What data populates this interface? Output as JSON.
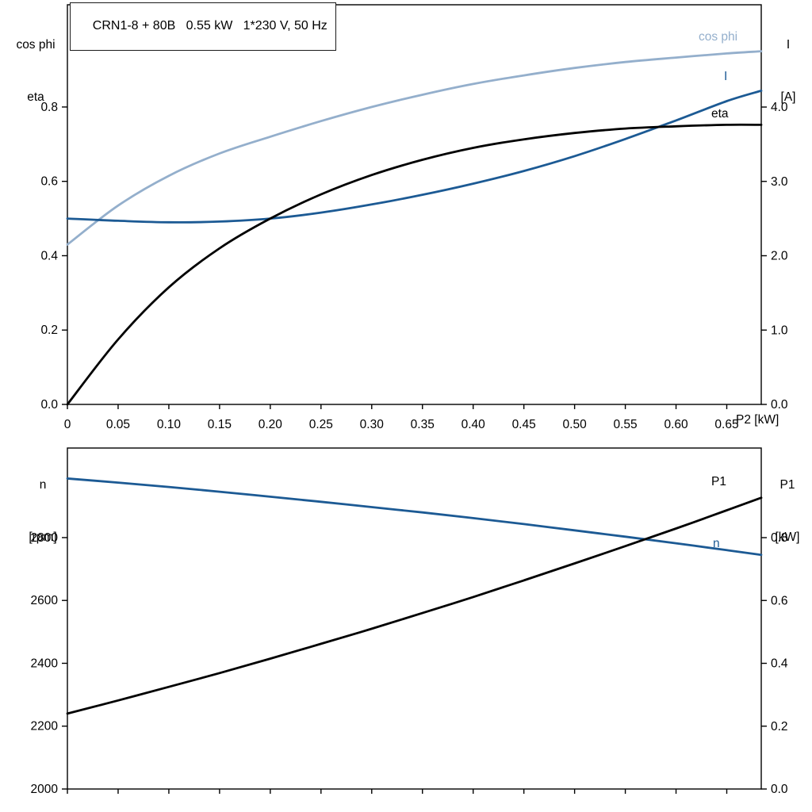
{
  "title_box": {
    "text": "CRN1-8 + 80B   0.55 kW   1*230 V, 50 Hz"
  },
  "colors": {
    "light_blue": "#94afcc",
    "dark_blue": "#1c5a94",
    "black": "#000000"
  },
  "axes_labels": {
    "top_left_line1": "cos phi",
    "top_left_line2": "eta",
    "top_right_line1": "I",
    "top_right_line2": "[A]",
    "x_axis_label": "P2 [kW]",
    "bottom_left_line1": "n",
    "bottom_left_line2": "[rpm]",
    "bottom_right_line1": "P1",
    "bottom_right_line2": "[kW]"
  },
  "chart_data": [
    {
      "type": "line",
      "title": "CRN1-8 + 80B 0.55 kW 1*230 V, 50 Hz",
      "xlabel": "P2 [kW]",
      "x": {
        "min": 0,
        "max": 0.684,
        "tick_step": 0.05,
        "tick_values": [
          0,
          0.05,
          0.1,
          0.15,
          0.2,
          0.25,
          0.3,
          0.35,
          0.4,
          0.45,
          0.5,
          0.55,
          0.6,
          0.65
        ],
        "tick_labels": [
          "0",
          "0.05",
          "0.10",
          "0.15",
          "0.20",
          "0.25",
          "0.30",
          "0.35",
          "0.40",
          "0.45",
          "0.50",
          "0.55",
          "0.60",
          "0.65"
        ]
      },
      "left_axis": {
        "name": "cos phi / eta",
        "min": 0,
        "max": 1.075,
        "tick_values": [
          0,
          0.2,
          0.4,
          0.6,
          0.8
        ],
        "tick_labels": [
          "0.0",
          "0.2",
          "0.4",
          "0.6",
          "0.8"
        ]
      },
      "right_axis": {
        "name": "I [A]",
        "min": 0,
        "max": 5.376,
        "tick_values": [
          0,
          1,
          2,
          3,
          4
        ],
        "tick_labels": [
          "0.0",
          "1.0",
          "2.0",
          "3.0",
          "4.0"
        ]
      },
      "grid": false,
      "legend_position": "curve-end-labels",
      "series": [
        {
          "name": "cos phi",
          "axis": "left",
          "color_key": "light_blue",
          "points": [
            [
              0,
              0.43
            ],
            [
              0.05,
              0.535
            ],
            [
              0.1,
              0.615
            ],
            [
              0.15,
              0.675
            ],
            [
              0.2,
              0.72
            ],
            [
              0.25,
              0.762
            ],
            [
              0.3,
              0.8
            ],
            [
              0.35,
              0.833
            ],
            [
              0.4,
              0.862
            ],
            [
              0.45,
              0.885
            ],
            [
              0.5,
              0.905
            ],
            [
              0.55,
              0.921
            ],
            [
              0.6,
              0.933
            ],
            [
              0.65,
              0.944
            ],
            [
              0.684,
              0.95
            ]
          ]
        },
        {
          "name": "I",
          "axis": "right",
          "color_key": "dark_blue",
          "points": [
            [
              0,
              2.5
            ],
            [
              0.05,
              2.47
            ],
            [
              0.1,
              2.45
            ],
            [
              0.15,
              2.46
            ],
            [
              0.2,
              2.5
            ],
            [
              0.25,
              2.58
            ],
            [
              0.3,
              2.69
            ],
            [
              0.35,
              2.82
            ],
            [
              0.4,
              2.97
            ],
            [
              0.45,
              3.14
            ],
            [
              0.5,
              3.34
            ],
            [
              0.55,
              3.57
            ],
            [
              0.6,
              3.82
            ],
            [
              0.65,
              4.08
            ],
            [
              0.684,
              4.22
            ]
          ]
        },
        {
          "name": "eta",
          "axis": "left",
          "color_key": "black",
          "points": [
            [
              0,
              0
            ],
            [
              0.05,
              0.175
            ],
            [
              0.1,
              0.315
            ],
            [
              0.15,
              0.42
            ],
            [
              0.2,
              0.5
            ],
            [
              0.25,
              0.565
            ],
            [
              0.3,
              0.617
            ],
            [
              0.35,
              0.658
            ],
            [
              0.4,
              0.69
            ],
            [
              0.45,
              0.713
            ],
            [
              0.5,
              0.73
            ],
            [
              0.55,
              0.742
            ],
            [
              0.6,
              0.748
            ],
            [
              0.65,
              0.752
            ],
            [
              0.684,
              0.752
            ]
          ]
        }
      ]
    },
    {
      "type": "line",
      "title": "",
      "xlabel": "",
      "x": {
        "min": 0,
        "max": 0.684,
        "tick_step": 0.05,
        "tick_values": [
          0,
          0.05,
          0.1,
          0.15,
          0.2,
          0.25,
          0.3,
          0.35,
          0.4,
          0.45,
          0.5,
          0.55,
          0.6,
          0.65
        ],
        "tick_labels": []
      },
      "left_axis": {
        "name": "n [rpm]",
        "min": 2000,
        "max": 3085,
        "tick_values": [
          2000,
          2200,
          2400,
          2600,
          2800
        ],
        "tick_labels": [
          "2000",
          "2200",
          "2400",
          "2600",
          "2800"
        ]
      },
      "right_axis": {
        "name": "P1 [kW]",
        "min": 0,
        "max": 1.0852,
        "tick_values": [
          0,
          0.2,
          0.4,
          0.6,
          0.8
        ],
        "tick_labels": [
          "0.0",
          "0.2",
          "0.4",
          "0.6",
          "0.8"
        ]
      },
      "grid": false,
      "legend_position": "curve-end-labels",
      "series": [
        {
          "name": "n",
          "axis": "left",
          "color_key": "dark_blue",
          "points": [
            [
              0,
              2988
            ],
            [
              0.05,
              2975
            ],
            [
              0.1,
              2961
            ],
            [
              0.15,
              2946
            ],
            [
              0.2,
              2930
            ],
            [
              0.25,
              2914
            ],
            [
              0.3,
              2897
            ],
            [
              0.35,
              2880
            ],
            [
              0.4,
              2862
            ],
            [
              0.45,
              2843
            ],
            [
              0.5,
              2823
            ],
            [
              0.55,
              2803
            ],
            [
              0.6,
              2782
            ],
            [
              0.65,
              2760
            ],
            [
              0.684,
              2745
            ]
          ]
        },
        {
          "name": "P1",
          "axis": "right",
          "color_key": "black",
          "points": [
            [
              0,
              0.24
            ],
            [
              0.05,
              0.282
            ],
            [
              0.1,
              0.325
            ],
            [
              0.15,
              0.369
            ],
            [
              0.2,
              0.415
            ],
            [
              0.25,
              0.462
            ],
            [
              0.3,
              0.51
            ],
            [
              0.35,
              0.56
            ],
            [
              0.4,
              0.611
            ],
            [
              0.45,
              0.664
            ],
            [
              0.5,
              0.718
            ],
            [
              0.55,
              0.773
            ],
            [
              0.6,
              0.829
            ],
            [
              0.65,
              0.887
            ],
            [
              0.684,
              0.927
            ]
          ]
        }
      ]
    }
  ]
}
